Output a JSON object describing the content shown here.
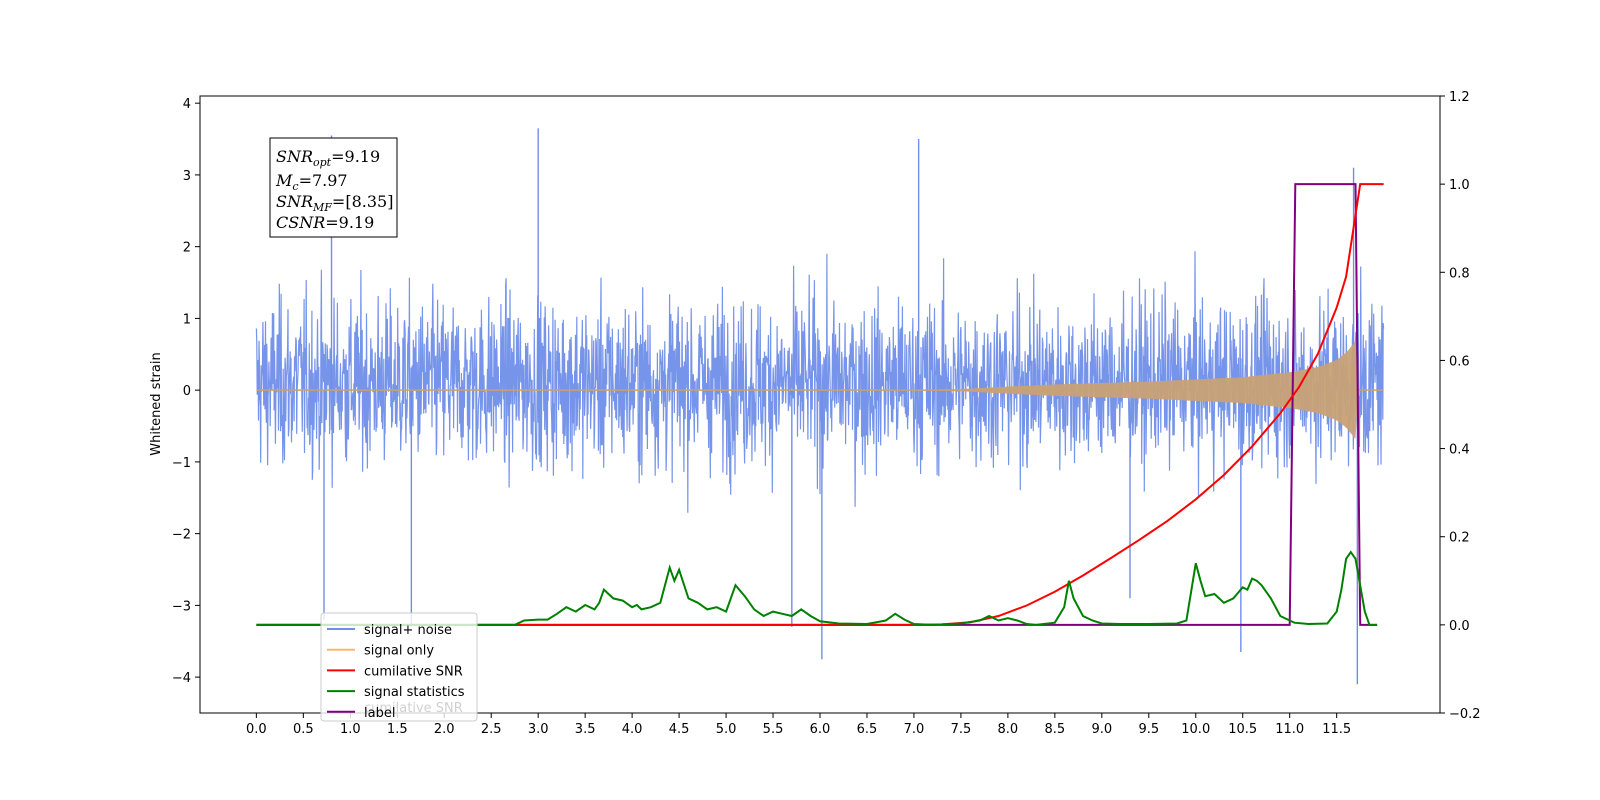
{
  "chart_data": {
    "type": "line",
    "ylabel": "Whitened strain",
    "xlim": [
      -0.6,
      12.6
    ],
    "ylim": [
      -4.5,
      4.1
    ],
    "y2lim": [
      -0.2,
      1.2
    ],
    "x_ticks": [
      "0.0",
      "0.5",
      "1.0",
      "1.5",
      "2.0",
      "2.5",
      "3.0",
      "3.5",
      "4.0",
      "4.5",
      "5.0",
      "5.5",
      "6.0",
      "6.5",
      "7.0",
      "7.5",
      "8.0",
      "8.5",
      "9.0",
      "9.5",
      "10.0",
      "10.5",
      "11.0",
      "11.5"
    ],
    "y_ticks": [
      "4",
      "3",
      "2",
      "1",
      "0",
      "−1",
      "−2",
      "−3",
      "−4"
    ],
    "y2_ticks": [
      "1.2",
      "1.0",
      "0.8",
      "0.6",
      "0.4",
      "0.2",
      "0.0",
      "−0.2"
    ],
    "annotation": {
      "snr_opt": "=9.19",
      "mc": "=7.97",
      "snr_mf": "=[8.35]",
      "csnr": "=9.19"
    },
    "legend": [
      "signal+ noise",
      "signal only",
      "cumilative SNR",
      "signal statistics",
      "label"
    ],
    "legend_ghost_text": "cumilative SNR",
    "legend_placement": "lower-left",
    "colors": {
      "noise": "#6f8ee8",
      "signal": "#f5b971",
      "cumulative": "#ff0000",
      "statistics": "#008000",
      "label": "#800080"
    },
    "series": [
      {
        "name": "signal+ noise",
        "axis": "left",
        "x_range": [
          0.0,
          12.0
        ],
        "envelope_typical": [
          -2.0,
          2.4
        ],
        "spikes": [
          [
            0.8,
            3.55
          ],
          [
            3.0,
            3.65
          ],
          [
            7.05,
            3.5
          ],
          [
            6.02,
            -3.75
          ],
          [
            10.48,
            -3.65
          ],
          [
            11.72,
            -4.1
          ],
          [
            11.68,
            3.1
          ],
          [
            1.65,
            -3.3
          ],
          [
            0.72,
            -3.2
          ],
          [
            5.7,
            -3.3
          ],
          [
            9.3,
            -2.9
          ]
        ]
      },
      {
        "name": "signal only",
        "axis": "left",
        "envelope": [
          [
            0.0,
            0.0
          ],
          [
            7.0,
            0.003
          ],
          [
            7.5,
            0.015
          ],
          [
            8.0,
            0.05
          ],
          [
            8.5,
            0.08
          ],
          [
            9.0,
            0.1
          ],
          [
            9.5,
            0.12
          ],
          [
            10.0,
            0.15
          ],
          [
            10.5,
            0.18
          ],
          [
            11.0,
            0.25
          ],
          [
            11.3,
            0.32
          ],
          [
            11.5,
            0.42
          ],
          [
            11.6,
            0.52
          ],
          [
            11.7,
            0.68
          ],
          [
            11.73,
            0.0
          ],
          [
            12.0,
            0.0
          ]
        ]
      },
      {
        "name": "cumilative SNR",
        "axis": "right",
        "x": [
          0.0,
          7.0,
          7.3,
          7.6,
          7.9,
          8.2,
          8.5,
          8.8,
          9.1,
          9.4,
          9.7,
          10.0,
          10.3,
          10.6,
          10.9,
          11.1,
          11.3,
          11.5,
          11.6,
          11.7,
          11.75,
          12.0
        ],
        "y": [
          0.0,
          0.0,
          0.001,
          0.006,
          0.02,
          0.044,
          0.075,
          0.112,
          0.152,
          0.193,
          0.236,
          0.285,
          0.34,
          0.405,
          0.48,
          0.54,
          0.615,
          0.72,
          0.79,
          0.93,
          1.0,
          1.0
        ]
      },
      {
        "name": "signal statistics",
        "axis": "right",
        "x": [
          0.0,
          2.75,
          2.85,
          3.0,
          3.1,
          3.2,
          3.3,
          3.4,
          3.5,
          3.6,
          3.65,
          3.7,
          3.8,
          3.9,
          4.0,
          4.05,
          4.1,
          4.2,
          4.3,
          4.4,
          4.45,
          4.5,
          4.6,
          4.7,
          4.8,
          4.9,
          5.0,
          5.1,
          5.2,
          5.3,
          5.4,
          5.5,
          5.6,
          5.7,
          5.8,
          5.9,
          6.0,
          6.2,
          6.5,
          6.7,
          6.8,
          6.9,
          7.0,
          7.2,
          7.5,
          7.7,
          7.8,
          7.9,
          8.0,
          8.1,
          8.2,
          8.3,
          8.5,
          8.6,
          8.65,
          8.7,
          8.8,
          8.9,
          9.0,
          9.2,
          9.5,
          9.8,
          9.9,
          10.0,
          10.05,
          10.1,
          10.2,
          10.3,
          10.4,
          10.5,
          10.55,
          10.6,
          10.65,
          10.7,
          10.8,
          10.9,
          11.0,
          11.05,
          11.2,
          11.4,
          11.5,
          11.55,
          11.6,
          11.65,
          11.7,
          11.8,
          11.85,
          11.93
        ],
        "y": [
          0.0,
          0.0,
          0.01,
          0.012,
          0.012,
          0.025,
          0.04,
          0.03,
          0.045,
          0.035,
          0.05,
          0.08,
          0.06,
          0.055,
          0.04,
          0.045,
          0.035,
          0.04,
          0.05,
          0.13,
          0.1,
          0.125,
          0.06,
          0.05,
          0.035,
          0.04,
          0.03,
          0.09,
          0.065,
          0.035,
          0.02,
          0.03,
          0.025,
          0.02,
          0.035,
          0.02,
          0.008,
          0.003,
          0.002,
          0.01,
          0.025,
          0.012,
          0.002,
          0.0,
          0.003,
          0.01,
          0.02,
          0.01,
          0.015,
          0.01,
          0.002,
          0.0,
          0.005,
          0.04,
          0.1,
          0.06,
          0.02,
          0.01,
          0.003,
          0.002,
          0.002,
          0.003,
          0.01,
          0.14,
          0.1,
          0.065,
          0.07,
          0.05,
          0.06,
          0.085,
          0.08,
          0.105,
          0.1,
          0.09,
          0.06,
          0.02,
          0.01,
          0.005,
          0.002,
          0.003,
          0.03,
          0.08,
          0.15,
          0.165,
          0.15,
          0.03,
          0.0,
          0.0
        ]
      },
      {
        "name": "label",
        "axis": "right",
        "x": [
          0.0,
          11.0,
          11.06,
          11.7,
          11.75,
          11.93
        ],
        "y": [
          0.0,
          0.0,
          1.0,
          1.0,
          0.0,
          0.0
        ]
      }
    ]
  }
}
